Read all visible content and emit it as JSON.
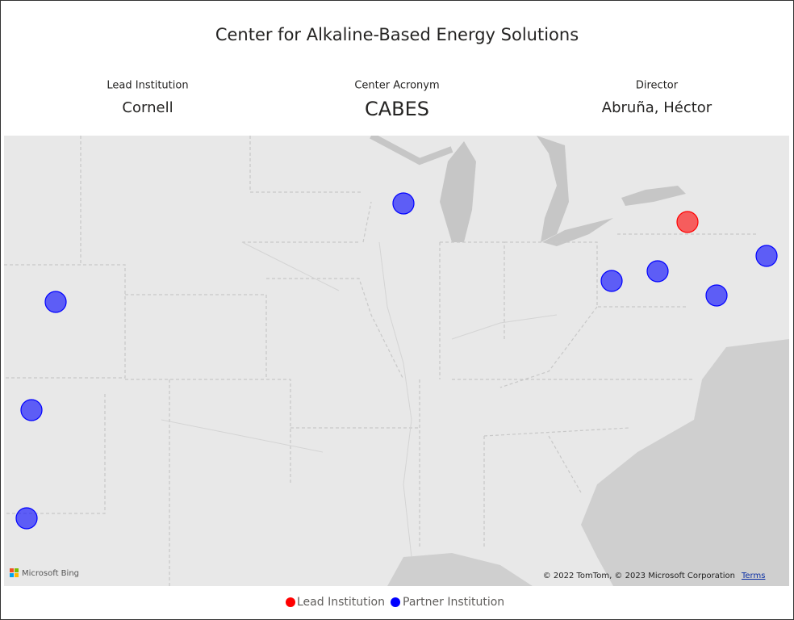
{
  "header": {
    "title": "Center for Alkaline-Based Energy Solutions"
  },
  "cards": [
    {
      "label": "Lead Institution",
      "value": "Cornell"
    },
    {
      "label": "Center Acronym",
      "value": "CABES"
    },
    {
      "label": "Director",
      "value": "Abruña, Héctor"
    }
  ],
  "map": {
    "logo": "Microsoft Bing",
    "attribution": "© 2022 TomTom, © 2023 Microsoft Corporation",
    "terms_link": "Terms"
  },
  "legend": [
    {
      "label": "Lead Institution",
      "color": "#ff0000"
    },
    {
      "label": "Partner Institution",
      "color": "#0000ff"
    }
  ]
}
